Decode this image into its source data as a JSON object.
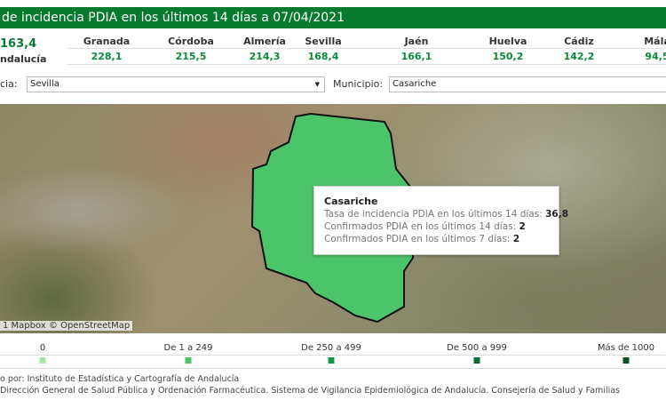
{
  "header": {
    "title": "de incidencia PDIA en los últimos 14 días a 07/04/2021"
  },
  "total": {
    "value": "163,4",
    "label": "ndalucía"
  },
  "provinces": [
    {
      "name": "Granada",
      "value": "228,1"
    },
    {
      "name": "Córdoba",
      "value": "215,5"
    },
    {
      "name": "Almería",
      "value": "214,3"
    },
    {
      "name": "Sevilla",
      "value": "168,4"
    },
    {
      "name": "Jaén",
      "value": "166,1"
    },
    {
      "name": "Huelva",
      "value": "150,2"
    },
    {
      "name": "Cádiz",
      "value": "142,2"
    },
    {
      "name": "Mála",
      "value": "94,5"
    }
  ],
  "filters": {
    "province_label": "cia:",
    "province_value": "Sevilla",
    "municipio_label": "Municipio:",
    "municipio_value": "Casariche"
  },
  "map": {
    "attribution": "1 Mapbox © OpenStreetMap",
    "highlight_color": "#4cc46a",
    "tooltip": {
      "name": "Casariche",
      "rate_label": "Tasa de incidencia PDIA en los últimos 14 días:",
      "rate": "36,8",
      "c14_label": "Confirmados PDIA en los últimos 14 días:",
      "c14": "2",
      "c7_label": "Confirmados PDIA en los últimos 7 días:",
      "c7": "2"
    }
  },
  "legend": [
    {
      "label": "0",
      "color": "#a5e3a9"
    },
    {
      "label": "De 1 a 249",
      "color": "#4cc46a"
    },
    {
      "label": "De 250 a 499",
      "color": "#0f9a45"
    },
    {
      "label": "De 500 a 999",
      "color": "#0b6e33"
    },
    {
      "label": "Más de 1000",
      "color": "#0a5428"
    }
  ],
  "footer": {
    "line1": "o por: Instituto de Estadística y Cartografía de Andalucía",
    "line2": "Dirección General de Salud Pública y Ordenación Farmacéutica. Sistema de Vigilancia Epidemiológica de Andalucía. Consejería de Salud y Familias"
  }
}
